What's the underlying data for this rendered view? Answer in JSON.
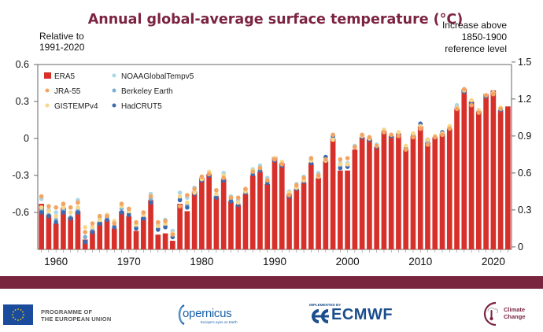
{
  "chart_data": {
    "type": "bar",
    "title": "Annual global-average surface temperature (°C)",
    "left_axis_note": [
      "Relative to",
      "1991-2020"
    ],
    "right_axis_note": [
      "Increase above",
      "1850-1900",
      "reference level"
    ],
    "left_ylim": [
      -0.9,
      0.6
    ],
    "left_ticks": [
      0.6,
      0.3,
      0,
      -0.3,
      -0.6
    ],
    "left_tick_labels": [
      "0.6",
      "0.3",
      "0",
      "-0.3",
      "-0.6"
    ],
    "right_ticks": [
      1.5,
      1.2,
      0.9,
      0.6,
      0.3,
      0
    ],
    "right_tick_labels": [
      "1.5",
      "1.2",
      "0.9",
      "0.6",
      "0.3",
      "0"
    ],
    "right_offset": 0.88,
    "x_tick_labels": [
      "1960",
      "1970",
      "1980",
      "1990",
      "2000",
      "2010",
      "2020"
    ],
    "x_ticks": [
      1960,
      1970,
      1980,
      1990,
      2000,
      2010,
      2020
    ],
    "xlim": [
      1957.5,
      2022.5
    ],
    "legend_placement": "top-left",
    "legend": [
      {
        "name": "ERA5",
        "color": "#d7302b",
        "marker": "square"
      },
      {
        "name": "JRA-55",
        "color": "#f4a460",
        "marker": "dot"
      },
      {
        "name": "GISTEMPv4",
        "color": "#f8d68a",
        "marker": "dot"
      },
      {
        "name": "NOAAGlobalTempv5",
        "color": "#a8d8e8",
        "marker": "dot"
      },
      {
        "name": "Berkeley Earth",
        "color": "#7aafd6",
        "marker": "dot"
      },
      {
        "name": "HadCRUT5",
        "color": "#3d6bb0",
        "marker": "dot"
      }
    ],
    "years": [
      1958,
      1959,
      1960,
      1961,
      1962,
      1963,
      1964,
      1965,
      1966,
      1967,
      1968,
      1969,
      1970,
      1971,
      1972,
      1973,
      1974,
      1975,
      1976,
      1977,
      1978,
      1979,
      1980,
      1981,
      1982,
      1983,
      1984,
      1985,
      1986,
      1987,
      1988,
      1989,
      1990,
      1991,
      1992,
      1993,
      1994,
      1995,
      1996,
      1997,
      1998,
      1999,
      2000,
      2001,
      2002,
      2003,
      2004,
      2005,
      2006,
      2007,
      2008,
      2009,
      2010,
      2011,
      2012,
      2013,
      2014,
      2015,
      2016,
      2017,
      2018,
      2019,
      2020,
      2021,
      2022
    ],
    "series": [
      {
        "name": "ERA5",
        "values": [
          -0.53,
          -0.62,
          -0.69,
          -0.56,
          -0.64,
          -0.59,
          -0.82,
          -0.75,
          -0.68,
          -0.66,
          -0.73,
          -0.59,
          -0.63,
          -0.75,
          -0.64,
          -0.5,
          -0.78,
          -0.77,
          -0.83,
          -0.53,
          -0.59,
          -0.43,
          -0.32,
          -0.29,
          -0.47,
          -0.33,
          -0.51,
          -0.54,
          -0.45,
          -0.3,
          -0.27,
          -0.37,
          -0.15,
          -0.2,
          -0.45,
          -0.41,
          -0.36,
          -0.2,
          -0.32,
          -0.18,
          0.0,
          -0.26,
          -0.26,
          -0.09,
          0.01,
          0.0,
          -0.07,
          0.06,
          0.02,
          0.04,
          -0.09,
          0.02,
          0.1,
          -0.03,
          0.01,
          0.04,
          0.08,
          0.24,
          0.4,
          0.3,
          0.22,
          0.36,
          0.39,
          0.23,
          0.26
        ]
      },
      {
        "name": "JRA-55",
        "values": [
          -0.47,
          -0.55,
          -0.56,
          -0.53,
          -0.56,
          -0.52,
          -0.76,
          -0.69,
          -0.63,
          -0.63,
          -0.69,
          -0.53,
          -0.57,
          -0.68,
          -0.6,
          -0.47,
          -0.68,
          -0.67,
          -0.78,
          -0.55,
          -0.46,
          -0.41,
          -0.31,
          -0.29,
          -0.42,
          -0.32,
          -0.48,
          -0.48,
          -0.41,
          -0.27,
          -0.24,
          -0.34,
          -0.17,
          -0.21,
          -0.46,
          -0.38,
          -0.32,
          -0.16,
          -0.3,
          -0.17,
          0.03,
          -0.17,
          -0.16,
          -0.07,
          0.03,
          0.01,
          -0.06,
          0.05,
          0.03,
          0.02,
          -0.09,
          0.01,
          0.08,
          -0.05,
          0.01,
          0.03,
          0.08,
          0.24,
          0.4,
          0.27,
          0.21,
          0.35,
          0.36,
          0.24,
          null
        ]
      },
      {
        "name": "GISTEMPv4",
        "values": [
          -0.56,
          -0.59,
          -0.63,
          -0.56,
          -0.6,
          -0.56,
          -0.72,
          -0.72,
          -0.66,
          -0.62,
          -0.67,
          -0.55,
          -0.59,
          -0.7,
          -0.62,
          -0.47,
          -0.71,
          -0.69,
          -0.77,
          -0.47,
          -0.52,
          -0.44,
          -0.33,
          -0.27,
          -0.45,
          -0.3,
          -0.48,
          -0.52,
          -0.43,
          -0.26,
          -0.24,
          -0.34,
          -0.16,
          -0.19,
          -0.44,
          -0.4,
          -0.34,
          -0.18,
          -0.31,
          -0.18,
          -0.01,
          -0.21,
          -0.21,
          -0.07,
          0.02,
          0.0,
          -0.06,
          0.07,
          0.03,
          0.05,
          -0.06,
          0.04,
          0.1,
          -0.01,
          0.02,
          0.04,
          0.1,
          0.25,
          0.39,
          0.31,
          0.23,
          0.35,
          0.37,
          0.25,
          null
        ]
      },
      {
        "name": "NOAAGlobalTempv5",
        "values": [
          -0.49,
          -0.58,
          -0.6,
          -0.54,
          -0.56,
          -0.5,
          -0.76,
          -0.72,
          -0.64,
          -0.63,
          -0.68,
          -0.55,
          -0.58,
          -0.69,
          -0.6,
          -0.45,
          -0.7,
          -0.66,
          -0.75,
          -0.44,
          -0.48,
          -0.4,
          -0.31,
          -0.28,
          -0.42,
          -0.28,
          -0.47,
          -0.5,
          -0.41,
          -0.25,
          -0.22,
          -0.32,
          -0.16,
          -0.2,
          -0.43,
          -0.37,
          -0.31,
          -0.17,
          -0.28,
          -0.16,
          0.0,
          -0.2,
          -0.2,
          -0.06,
          0.02,
          0.01,
          -0.05,
          0.06,
          0.02,
          0.04,
          -0.08,
          0.03,
          0.08,
          -0.03,
          0.01,
          0.03,
          0.09,
          0.27,
          0.38,
          0.3,
          0.22,
          0.34,
          0.36,
          0.23,
          null
        ]
      },
      {
        "name": "Berkeley Earth",
        "values": [
          -0.58,
          -0.62,
          -0.66,
          -0.58,
          -0.64,
          -0.58,
          -0.8,
          -0.74,
          -0.68,
          -0.64,
          -0.71,
          -0.57,
          -0.61,
          -0.72,
          -0.64,
          -0.49,
          -0.73,
          -0.71,
          -0.78,
          -0.49,
          -0.54,
          -0.44,
          -0.33,
          -0.29,
          -0.47,
          -0.32,
          -0.5,
          -0.53,
          -0.43,
          -0.27,
          -0.26,
          -0.35,
          -0.17,
          -0.21,
          -0.46,
          -0.4,
          -0.34,
          -0.18,
          -0.3,
          -0.17,
          0.01,
          -0.22,
          -0.22,
          -0.07,
          0.02,
          0.0,
          -0.06,
          0.07,
          0.02,
          0.04,
          -0.08,
          0.03,
          0.11,
          -0.02,
          0.01,
          0.04,
          0.09,
          0.25,
          0.38,
          0.3,
          0.22,
          0.35,
          0.37,
          0.24,
          null
        ]
      },
      {
        "name": "HadCRUT5",
        "values": [
          -0.6,
          -0.63,
          -0.68,
          -0.6,
          -0.65,
          -0.6,
          -0.84,
          -0.76,
          -0.69,
          -0.66,
          -0.72,
          -0.6,
          -0.62,
          -0.73,
          -0.65,
          -0.52,
          -0.74,
          -0.72,
          -0.8,
          -0.5,
          -0.56,
          -0.45,
          -0.34,
          -0.3,
          -0.48,
          -0.34,
          -0.51,
          -0.54,
          -0.44,
          -0.29,
          -0.26,
          -0.36,
          -0.18,
          -0.22,
          -0.47,
          -0.41,
          -0.35,
          -0.2,
          -0.31,
          -0.15,
          0.02,
          -0.24,
          -0.23,
          -0.07,
          0.01,
          -0.01,
          -0.07,
          0.05,
          0.02,
          0.03,
          -0.08,
          0.03,
          0.12,
          -0.01,
          0.01,
          0.05,
          0.08,
          0.25,
          0.38,
          0.29,
          0.21,
          0.34,
          0.37,
          0.23,
          null
        ]
      }
    ]
  },
  "footer": {
    "eu_text_line1": "PROGRAMME OF",
    "eu_text_line2": "THE EUROPEAN UNION",
    "copernicus": "opernicus",
    "copernicus_sub": "Europe's eyes on Earth",
    "ecmwf_implemented": "IMPLEMENTED BY",
    "ecmwf": "ECMWF",
    "climate_line1": "Climate",
    "climate_line2": "Change"
  },
  "colors": {
    "title": "#7b2340",
    "band": "#7a2540",
    "era5": "#d7302b"
  }
}
